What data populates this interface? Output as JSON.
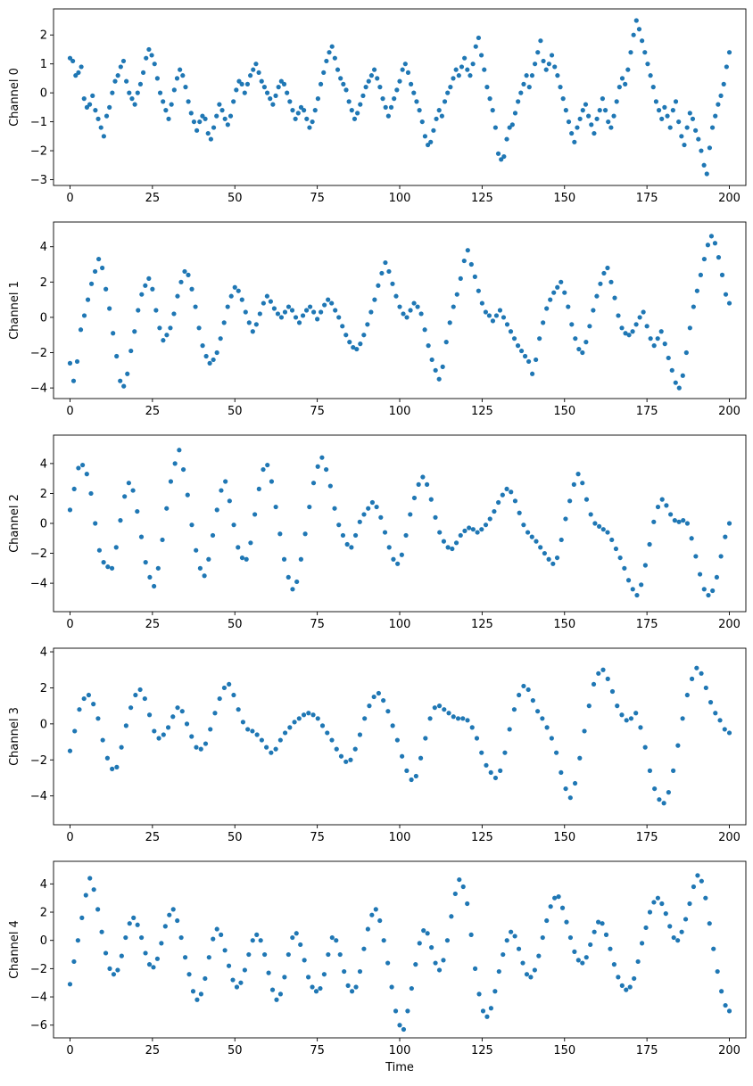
{
  "figure": {
    "background": "#ffffff"
  },
  "chart_data": [
    {
      "type": "scatter",
      "ylabel": "Channel 0",
      "xlabel": "",
      "xlim": [
        -5,
        205
      ],
      "ylim": [
        -3.2,
        2.9
      ],
      "xticks": [
        0,
        25,
        50,
        75,
        100,
        125,
        150,
        175,
        200
      ],
      "yticks": [
        2,
        1,
        0,
        -1,
        -2,
        -3
      ],
      "color": "#1f77b4",
      "y": [
        1.2,
        1.1,
        0.6,
        0.7,
        0.9,
        -0.2,
        -0.5,
        -0.4,
        -0.1,
        -0.6,
        -0.9,
        -1.2,
        -1.5,
        -0.8,
        -0.5,
        0.0,
        0.4,
        0.6,
        0.9,
        1.1,
        0.4,
        0.0,
        -0.2,
        -0.4,
        0.0,
        0.3,
        0.7,
        1.2,
        1.5,
        1.3,
        1.0,
        0.5,
        0.0,
        -0.3,
        -0.6,
        -0.9,
        -0.4,
        0.1,
        0.5,
        0.8,
        0.6,
        0.2,
        -0.3,
        -0.7,
        -1.0,
        -1.3,
        -1.0,
        -0.8,
        -0.9,
        -1.4,
        -1.6,
        -1.2,
        -0.8,
        -0.4,
        -0.6,
        -0.9,
        -1.1,
        -0.8,
        -0.3,
        0.1,
        0.4,
        0.3,
        0.0,
        0.3,
        0.6,
        0.8,
        1.0,
        0.7,
        0.4,
        0.2,
        0.0,
        -0.2,
        -0.4,
        -0.1,
        0.2,
        0.4,
        0.3,
        0.0,
        -0.3,
        -0.6,
        -0.9,
        -0.7,
        -0.5,
        -0.6,
        -0.9,
        -1.2,
        -1.0,
        -0.6,
        -0.2,
        0.3,
        0.7,
        1.1,
        1.4,
        1.6,
        1.2,
        0.8,
        0.5,
        0.3,
        0.1,
        -0.3,
        -0.6,
        -0.9,
        -0.7,
        -0.4,
        -0.1,
        0.2,
        0.4,
        0.6,
        0.8,
        0.5,
        0.2,
        -0.2,
        -0.5,
        -0.8,
        -0.5,
        -0.2,
        0.1,
        0.4,
        0.8,
        1.0,
        0.7,
        0.3,
        0.0,
        -0.3,
        -0.6,
        -1.0,
        -1.5,
        -1.8,
        -1.7,
        -1.3,
        -0.9,
        -0.6,
        -0.8,
        -0.3,
        0.0,
        0.2,
        0.5,
        0.8,
        0.6,
        0.9,
        1.2,
        0.8,
        0.6,
        1.0,
        1.6,
        1.9,
        1.3,
        0.8,
        0.2,
        -0.2,
        -0.6,
        -1.2,
        -2.1,
        -2.3,
        -2.2,
        -1.6,
        -1.2,
        -1.1,
        -0.7,
        -0.3,
        0.0,
        0.3,
        0.6,
        0.2,
        0.6,
        1.0,
        1.4,
        1.8,
        1.1,
        0.8,
        1.0,
        1.3,
        0.9,
        0.6,
        0.2,
        -0.2,
        -0.6,
        -1.0,
        -1.4,
        -1.7,
        -1.2,
        -0.9,
        -0.6,
        -0.4,
        -0.8,
        -1.1,
        -1.4,
        -0.9,
        -0.6,
        -0.2,
        -0.6,
        -1.0,
        -1.2,
        -0.8,
        -0.3,
        0.2,
        0.5,
        0.3,
        0.8,
        1.4,
        2.0,
        2.5,
        2.2,
        1.8,
        1.4,
        1.0,
        0.6,
        0.2,
        -0.3,
        -0.6,
        -0.9,
        -0.5,
        -0.8,
        -1.2,
        -0.6,
        -0.3,
        -1.0,
        -1.5,
        -1.8,
        -1.2,
        -0.7,
        -0.9,
        -1.3,
        -1.6,
        -2.0,
        -2.5,
        -2.8,
        -1.9,
        -1.2,
        -0.8,
        -0.4,
        -0.1,
        0.3,
        0.9,
        1.4
      ]
    },
    {
      "type": "scatter",
      "ylabel": "Channel 1",
      "xlabel": "",
      "xlim": [
        -5,
        205
      ],
      "ylim": [
        -4.6,
        5.4
      ],
      "xticks": [
        0,
        25,
        50,
        75,
        100,
        125,
        150,
        175,
        200
      ],
      "yticks": [
        4,
        2,
        0,
        -2,
        -4
      ],
      "color": "#1f77b4",
      "y": [
        -2.6,
        -3.6,
        -2.5,
        -0.7,
        0.1,
        1.0,
        1.9,
        2.6,
        3.3,
        2.8,
        1.6,
        0.5,
        -0.9,
        -2.2,
        -3.6,
        -3.9,
        -3.2,
        -1.9,
        -0.8,
        0.4,
        1.3,
        1.8,
        2.2,
        1.6,
        0.4,
        -0.6,
        -1.3,
        -1.0,
        -0.6,
        0.2,
        1.2,
        2.0,
        2.6,
        2.4,
        1.6,
        0.6,
        -0.6,
        -1.6,
        -2.2,
        -2.6,
        -2.4,
        -2.0,
        -1.2,
        -0.3,
        0.6,
        1.2,
        1.7,
        1.5,
        1.0,
        0.3,
        -0.3,
        -0.8,
        -0.4,
        0.2,
        0.8,
        1.2,
        0.9,
        0.5,
        0.2,
        0.0,
        0.3,
        0.6,
        0.4,
        0.0,
        -0.3,
        0.1,
        0.4,
        0.6,
        0.3,
        -0.1,
        0.3,
        0.7,
        1.0,
        0.8,
        0.4,
        0.0,
        -0.5,
        -1.0,
        -1.4,
        -1.7,
        -1.8,
        -1.5,
        -1.0,
        -0.4,
        0.3,
        1.0,
        1.8,
        2.5,
        3.1,
        2.6,
        1.9,
        1.2,
        0.6,
        0.2,
        0.0,
        0.4,
        0.8,
        0.6,
        0.2,
        -0.7,
        -1.6,
        -2.4,
        -3.0,
        -3.5,
        -2.8,
        -1.4,
        -0.3,
        0.6,
        1.3,
        2.2,
        3.2,
        3.8,
        3.0,
        2.3,
        1.5,
        0.8,
        0.3,
        0.1,
        -0.2,
        0.1,
        0.4,
        0.0,
        -0.4,
        -0.8,
        -1.2,
        -1.6,
        -1.9,
        -2.2,
        -2.5,
        -3.2,
        -2.4,
        -1.2,
        -0.3,
        0.5,
        1.0,
        1.4,
        1.7,
        2.0,
        1.4,
        0.6,
        -0.4,
        -1.2,
        -1.8,
        -2.0,
        -1.4,
        -0.5,
        0.4,
        1.2,
        1.9,
        2.5,
        2.8,
        2.0,
        1.1,
        0.1,
        -0.6,
        -0.9,
        -1.0,
        -0.8,
        -0.4,
        0.0,
        0.3,
        -0.5,
        -1.2,
        -1.6,
        -1.2,
        -0.8,
        -1.5,
        -2.3,
        -3.0,
        -3.7,
        -4.0,
        -3.3,
        -2.0,
        -0.6,
        0.6,
        1.5,
        2.4,
        3.3,
        4.1,
        4.6,
        4.2,
        3.4,
        2.4,
        1.3,
        0.8
      ]
    },
    {
      "type": "scatter",
      "ylabel": "Channel 2",
      "xlabel": "",
      "xlim": [
        -5,
        205
      ],
      "ylim": [
        -5.9,
        5.9
      ],
      "xticks": [
        0,
        25,
        50,
        75,
        100,
        125,
        150,
        175,
        200
      ],
      "yticks": [
        4,
        2,
        0,
        -2,
        -4
      ],
      "color": "#1f77b4",
      "y": [
        0.9,
        2.3,
        3.7,
        3.9,
        3.3,
        2.0,
        0.0,
        -1.8,
        -2.6,
        -2.9,
        -3.0,
        -1.6,
        0.2,
        1.8,
        2.7,
        2.2,
        0.8,
        -0.9,
        -2.6,
        -3.6,
        -4.2,
        -3.0,
        -1.1,
        1.0,
        2.8,
        4.0,
        4.9,
        3.6,
        1.9,
        -0.1,
        -1.8,
        -3.0,
        -3.5,
        -2.4,
        -0.8,
        0.9,
        2.2,
        2.8,
        1.5,
        -0.1,
        -1.6,
        -2.3,
        -2.4,
        -1.3,
        0.6,
        2.3,
        3.6,
        3.9,
        2.8,
        1.1,
        -0.7,
        -2.4,
        -3.6,
        -4.4,
        -3.9,
        -2.4,
        -0.7,
        1.1,
        2.7,
        3.8,
        4.4,
        3.6,
        2.5,
        1.0,
        -0.1,
        -0.8,
        -1.4,
        -1.6,
        -0.8,
        0.1,
        0.6,
        1.0,
        1.4,
        1.1,
        0.4,
        -0.6,
        -1.6,
        -2.4,
        -2.7,
        -2.1,
        -0.8,
        0.6,
        1.7,
        2.6,
        3.1,
        2.6,
        1.6,
        0.4,
        -0.6,
        -1.2,
        -1.6,
        -1.7,
        -1.3,
        -0.8,
        -0.5,
        -0.3,
        -0.4,
        -0.6,
        -0.4,
        -0.1,
        0.3,
        0.8,
        1.4,
        1.9,
        2.3,
        2.1,
        1.5,
        0.7,
        -0.1,
        -0.6,
        -0.9,
        -1.2,
        -1.6,
        -2.0,
        -2.4,
        -2.7,
        -2.3,
        -1.1,
        0.3,
        1.5,
        2.6,
        3.3,
        2.7,
        1.6,
        0.6,
        0.0,
        -0.2,
        -0.4,
        -0.6,
        -1.1,
        -1.7,
        -2.3,
        -3.0,
        -3.8,
        -4.4,
        -4.8,
        -4.1,
        -2.8,
        -1.4,
        0.1,
        1.1,
        1.6,
        1.2,
        0.6,
        0.2,
        0.1,
        0.2,
        0.0,
        -1.0,
        -2.2,
        -3.4,
        -4.4,
        -4.8,
        -4.5,
        -3.6,
        -2.2,
        -0.9,
        0.0
      ]
    },
    {
      "type": "scatter",
      "ylabel": "Channel 3",
      "xlabel": "",
      "xlim": [
        -5,
        205
      ],
      "ylim": [
        -5.6,
        4.2
      ],
      "xticks": [
        0,
        25,
        50,
        75,
        100,
        125,
        150,
        175,
        200
      ],
      "yticks": [
        4,
        2,
        0,
        -2,
        -4
      ],
      "color": "#1f77b4",
      "y": [
        -1.5,
        -0.4,
        0.8,
        1.4,
        1.6,
        1.1,
        0.3,
        -0.9,
        -1.9,
        -2.5,
        -2.4,
        -1.3,
        -0.1,
        0.9,
        1.6,
        1.9,
        1.4,
        0.5,
        -0.4,
        -0.8,
        -0.6,
        -0.2,
        0.4,
        0.9,
        0.7,
        0.0,
        -0.7,
        -1.3,
        -1.4,
        -1.1,
        -0.3,
        0.6,
        1.4,
        2.0,
        2.2,
        1.6,
        0.8,
        0.1,
        -0.3,
        -0.4,
        -0.6,
        -0.9,
        -1.3,
        -1.6,
        -1.4,
        -0.9,
        -0.5,
        -0.2,
        0.1,
        0.3,
        0.5,
        0.6,
        0.5,
        0.3,
        -0.1,
        -0.5,
        -0.9,
        -1.4,
        -1.8,
        -2.1,
        -2.0,
        -1.4,
        -0.6,
        0.3,
        1.0,
        1.5,
        1.7,
        1.3,
        0.7,
        -0.1,
        -0.9,
        -1.8,
        -2.6,
        -3.1,
        -2.9,
        -1.9,
        -0.8,
        0.3,
        0.9,
        1.0,
        0.8,
        0.6,
        0.4,
        0.3,
        0.3,
        0.2,
        -0.2,
        -0.8,
        -1.6,
        -2.3,
        -2.7,
        -3.0,
        -2.6,
        -1.6,
        -0.3,
        0.8,
        1.6,
        2.1,
        1.9,
        1.3,
        0.7,
        0.3,
        -0.2,
        -0.8,
        -1.6,
        -2.7,
        -3.6,
        -4.1,
        -3.3,
        -1.9,
        -0.4,
        1.0,
        2.2,
        2.8,
        3.0,
        2.5,
        1.8,
        1.0,
        0.5,
        0.2,
        0.3,
        0.6,
        -0.2,
        -1.3,
        -2.6,
        -3.6,
        -4.2,
        -4.4,
        -3.8,
        -2.6,
        -1.2,
        0.3,
        1.6,
        2.5,
        3.1,
        2.8,
        2.0,
        1.2,
        0.6,
        0.2,
        -0.3,
        -0.5
      ]
    },
    {
      "type": "scatter",
      "ylabel": "Channel 4",
      "xlabel": "Time",
      "xlim": [
        -5,
        205
      ],
      "ylim": [
        -6.9,
        5.6
      ],
      "xticks": [
        0,
        25,
        50,
        75,
        100,
        125,
        150,
        175,
        200
      ],
      "yticks": [
        4,
        2,
        0,
        -2,
        -4,
        -6
      ],
      "color": "#1f77b4",
      "y": [
        -3.1,
        -1.5,
        0.0,
        1.6,
        3.2,
        4.4,
        3.6,
        2.2,
        0.6,
        -0.9,
        -2.0,
        -2.4,
        -2.1,
        -1.1,
        0.2,
        1.2,
        1.6,
        1.1,
        0.2,
        -0.9,
        -1.7,
        -1.9,
        -1.3,
        -0.2,
        1.0,
        1.8,
        2.2,
        1.4,
        0.2,
        -1.2,
        -2.4,
        -3.6,
        -4.2,
        -3.8,
        -2.7,
        -1.2,
        0.1,
        0.8,
        0.4,
        -0.7,
        -1.8,
        -2.8,
        -3.3,
        -3.0,
        -2.1,
        -1.0,
        0.0,
        0.4,
        0.0,
        -1.0,
        -2.3,
        -3.5,
        -4.2,
        -3.8,
        -2.6,
        -1.0,
        0.2,
        0.5,
        -0.3,
        -1.4,
        -2.6,
        -3.3,
        -3.6,
        -3.4,
        -2.4,
        -1.0,
        0.2,
        0.0,
        -1.0,
        -2.2,
        -3.2,
        -3.6,
        -3.3,
        -2.2,
        -0.6,
        0.8,
        1.8,
        2.2,
        1.4,
        0.0,
        -1.6,
        -3.3,
        -5.0,
        -6.0,
        -6.3,
        -5.0,
        -3.4,
        -1.7,
        -0.2,
        0.7,
        0.5,
        -0.5,
        -1.6,
        -2.1,
        -1.4,
        0.0,
        1.7,
        3.3,
        4.3,
        3.8,
        2.6,
        0.4,
        -2.0,
        -3.8,
        -5.0,
        -5.4,
        -4.8,
        -3.6,
        -2.2,
        -1.0,
        0.0,
        0.6,
        0.3,
        -0.6,
        -1.6,
        -2.4,
        -2.6,
        -2.1,
        -1.1,
        0.2,
        1.4,
        2.4,
        3.0,
        3.1,
        2.3,
        1.3,
        0.2,
        -0.8,
        -1.4,
        -1.6,
        -1.2,
        -0.3,
        0.6,
        1.3,
        1.2,
        0.4,
        -0.6,
        -1.7,
        -2.6,
        -3.2,
        -3.5,
        -3.3,
        -2.7,
        -1.5,
        -0.2,
        0.9,
        2.0,
        2.7,
        3.0,
        2.6,
        1.9,
        1.0,
        0.2,
        0.0,
        0.6,
        1.5,
        2.6,
        3.8,
        4.6,
        4.2,
        3.0,
        1.2,
        -0.6,
        -2.2,
        -3.6,
        -4.6,
        -5.0
      ]
    }
  ]
}
